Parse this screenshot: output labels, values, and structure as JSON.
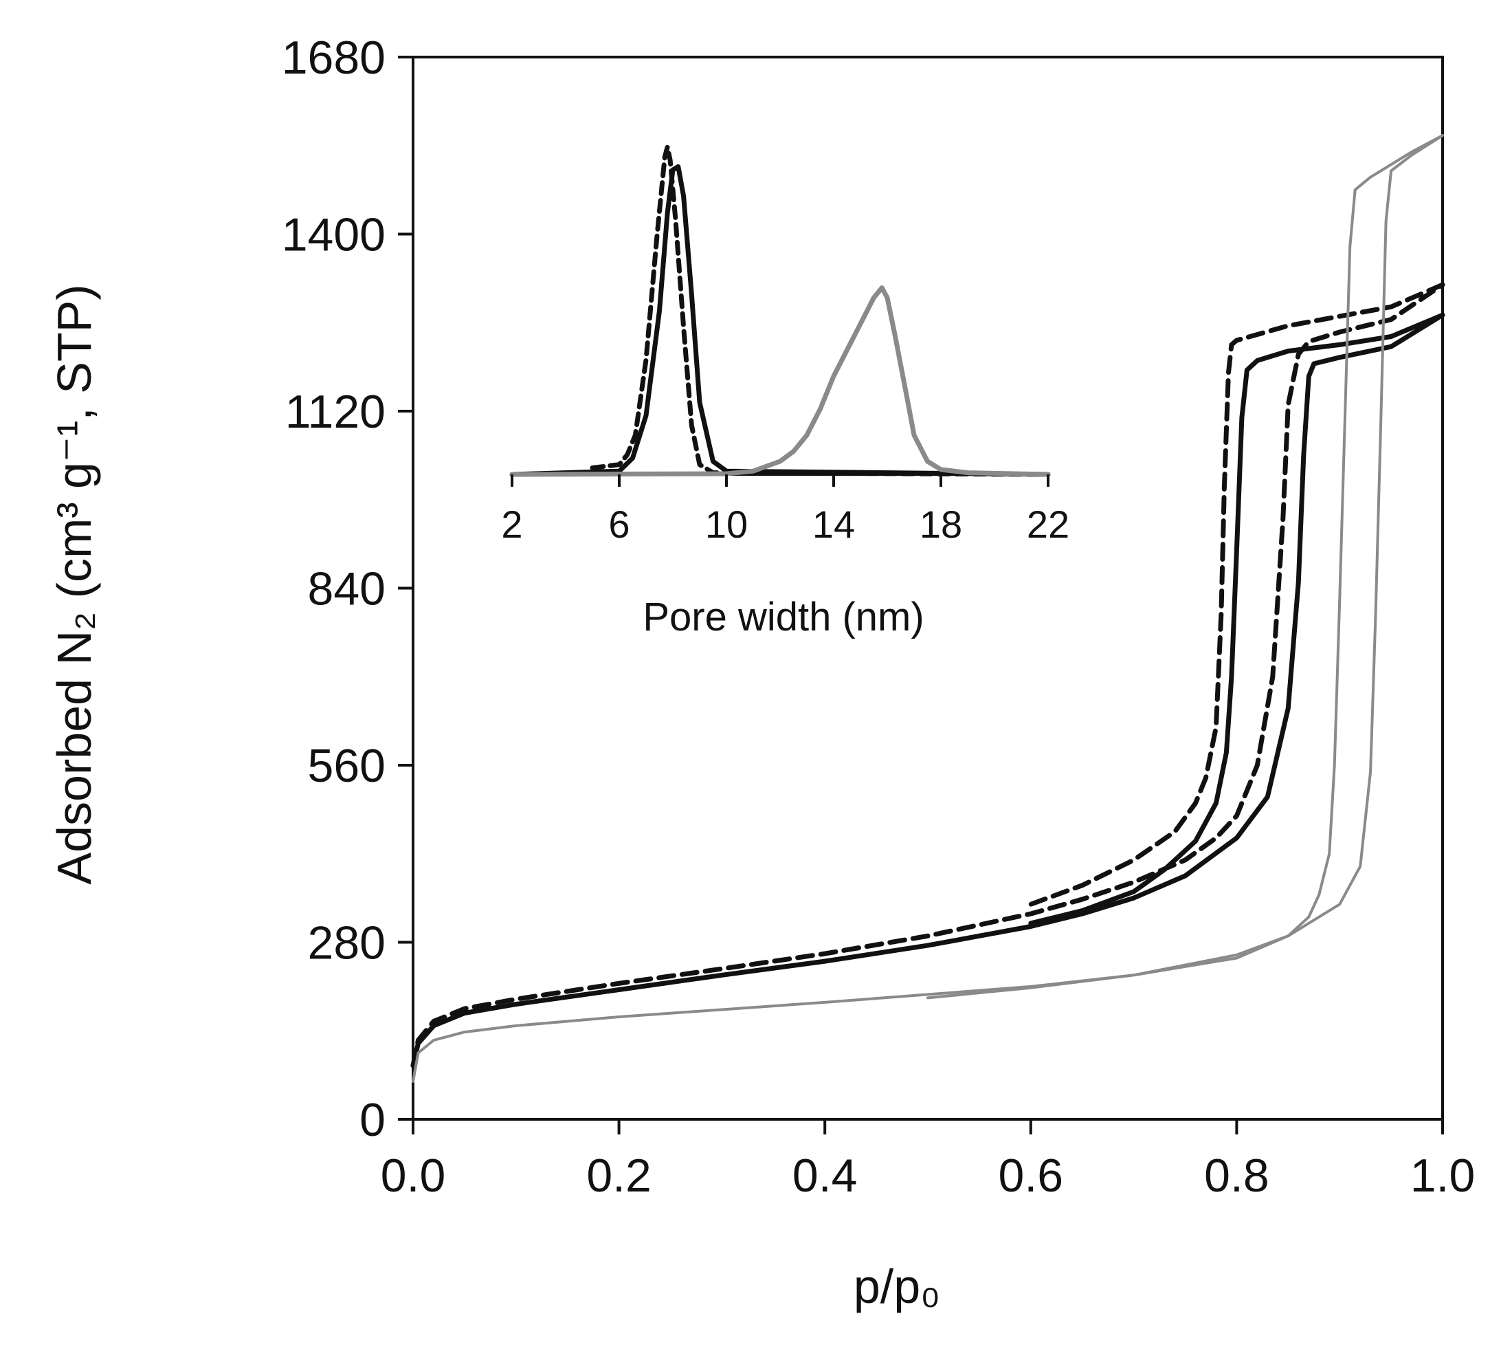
{
  "chart_data": [
    {
      "name": "main",
      "type": "line",
      "title": "",
      "xlabel": "p/p₀",
      "ylabel": "Adsorbed N₂ (cm³ g⁻¹, STP)",
      "xlim": [
        0,
        1.0
      ],
      "ylim": [
        0,
        1680
      ],
      "xticks": [
        "0.0",
        "0.2",
        "0.4",
        "0.6",
        "0.8",
        "1.0"
      ],
      "yticks": [
        "0",
        "280",
        "560",
        "840",
        "1120",
        "1400",
        "1680"
      ],
      "grid": false,
      "legend": "none",
      "series": [
        {
          "name": "black-dashed-isotherm",
          "color": "#111111",
          "style": "dashed",
          "weight": "thick",
          "adsorption": {
            "x": [
              0,
              0.005,
              0.02,
              0.05,
              0.1,
              0.2,
              0.3,
              0.4,
              0.5,
              0.6,
              0.65,
              0.7,
              0.75,
              0.78,
              0.8,
              0.82,
              0.835,
              0.845,
              0.85,
              0.855,
              0.86,
              0.87,
              0.9,
              0.95,
              1.0
            ],
            "y": [
              85,
              125,
              155,
              175,
              190,
              215,
              238,
              262,
              290,
              325,
              348,
              375,
              410,
              445,
              480,
              560,
              700,
              950,
              1130,
              1170,
              1210,
              1230,
              1245,
              1265,
              1320
            ]
          },
          "desorption": {
            "x": [
              1.0,
              0.95,
              0.9,
              0.85,
              0.8,
              0.795,
              0.792,
              0.788,
              0.785,
              0.78,
              0.77,
              0.76,
              0.74,
              0.7,
              0.65,
              0.6
            ],
            "y": [
              1320,
              1285,
              1270,
              1255,
              1232,
              1225,
              1180,
              1000,
              800,
              620,
              540,
              500,
              455,
              410,
              370,
              340
            ]
          }
        },
        {
          "name": "black-solid-isotherm",
          "color": "#111111",
          "style": "solid",
          "weight": "thick",
          "adsorption": {
            "x": [
              0,
              0.005,
              0.02,
              0.05,
              0.1,
              0.2,
              0.3,
              0.4,
              0.5,
              0.6,
              0.65,
              0.7,
              0.75,
              0.8,
              0.83,
              0.85,
              0.86,
              0.865,
              0.87,
              0.875,
              0.9,
              0.95,
              1.0
            ],
            "y": [
              85,
              120,
              148,
              168,
              182,
              205,
              228,
              250,
              275,
              305,
              325,
              350,
              385,
              445,
              510,
              650,
              850,
              1050,
              1175,
              1195,
              1205,
              1222,
              1272
            ]
          },
          "desorption": {
            "x": [
              1.0,
              0.95,
              0.9,
              0.85,
              0.82,
              0.81,
              0.805,
              0.8,
              0.795,
              0.79,
              0.78,
              0.76,
              0.73,
              0.7,
              0.65,
              0.6
            ],
            "y": [
              1272,
              1238,
              1225,
              1215,
              1200,
              1185,
              1110,
              900,
              700,
              580,
              500,
              440,
              395,
              360,
              330,
              310
            ]
          }
        },
        {
          "name": "gray-isotherm",
          "color": "#8a8a8a",
          "style": "solid",
          "weight": "thin",
          "adsorption": {
            "x": [
              0,
              0.005,
              0.02,
              0.05,
              0.1,
              0.2,
              0.4,
              0.6,
              0.7,
              0.8,
              0.85,
              0.9,
              0.92,
              0.93,
              0.935,
              0.94,
              0.945,
              0.95,
              0.97,
              1.0
            ],
            "y": [
              60,
              105,
              125,
              138,
              148,
              162,
              185,
              210,
              228,
              260,
              290,
              340,
              400,
              550,
              800,
              1100,
              1420,
              1500,
              1525,
              1556
            ]
          },
          "desorption": {
            "x": [
              1.0,
              0.97,
              0.95,
              0.93,
              0.915,
              0.91,
              0.905,
              0.9,
              0.895,
              0.89,
              0.88,
              0.87,
              0.85,
              0.8,
              0.7,
              0.6,
              0.5
            ],
            "y": [
              1556,
              1530,
              1510,
              1490,
              1470,
              1380,
              1100,
              820,
              560,
              420,
              355,
              320,
              290,
              255,
              228,
              208,
              192
            ]
          }
        }
      ]
    },
    {
      "name": "inset",
      "type": "line",
      "title": "",
      "xlabel": "Pore width (nm)",
      "ylabel": "",
      "xlim": [
        2,
        22
      ],
      "ylim": [
        0,
        1.05
      ],
      "xticks": [
        "2",
        "6",
        "10",
        "14",
        "18",
        "22"
      ],
      "yticks": [],
      "grid": false,
      "legend": "none",
      "series": [
        {
          "name": "black-dashed-psd",
          "color": "#111111",
          "style": "dashed",
          "weight": "thick",
          "x": [
            5.0,
            6.0,
            6.3,
            6.6,
            7.0,
            7.4,
            7.7,
            7.8,
            7.9,
            8.1,
            8.4,
            8.7,
            9.0,
            9.5,
            22
          ],
          "y": [
            0.02,
            0.03,
            0.06,
            0.12,
            0.35,
            0.72,
            0.97,
            1.0,
            0.96,
            0.78,
            0.45,
            0.15,
            0.03,
            0.005,
            0.0
          ]
        },
        {
          "name": "black-solid-psd",
          "color": "#111111",
          "style": "solid",
          "weight": "thick",
          "x": [
            2,
            6.0,
            6.5,
            7.0,
            7.5,
            7.8,
            8.0,
            8.2,
            8.4,
            8.7,
            9.0,
            9.5,
            10.0,
            22
          ],
          "y": [
            0.0,
            0.01,
            0.05,
            0.18,
            0.5,
            0.8,
            0.93,
            0.94,
            0.85,
            0.55,
            0.22,
            0.04,
            0.01,
            0.0
          ]
        },
        {
          "name": "gray-psd",
          "color": "#8a8a8a",
          "style": "solid",
          "weight": "thick",
          "x": [
            2,
            10,
            11.0,
            12.0,
            12.5,
            13.0,
            13.5,
            14.0,
            14.5,
            15.0,
            15.5,
            15.8,
            16.0,
            16.3,
            16.7,
            17.0,
            17.5,
            18.0,
            19.0,
            22
          ],
          "y": [
            0.0,
            0.002,
            0.01,
            0.04,
            0.07,
            0.12,
            0.2,
            0.3,
            0.38,
            0.46,
            0.54,
            0.57,
            0.54,
            0.42,
            0.25,
            0.12,
            0.04,
            0.015,
            0.005,
            0.0
          ]
        }
      ]
    }
  ]
}
